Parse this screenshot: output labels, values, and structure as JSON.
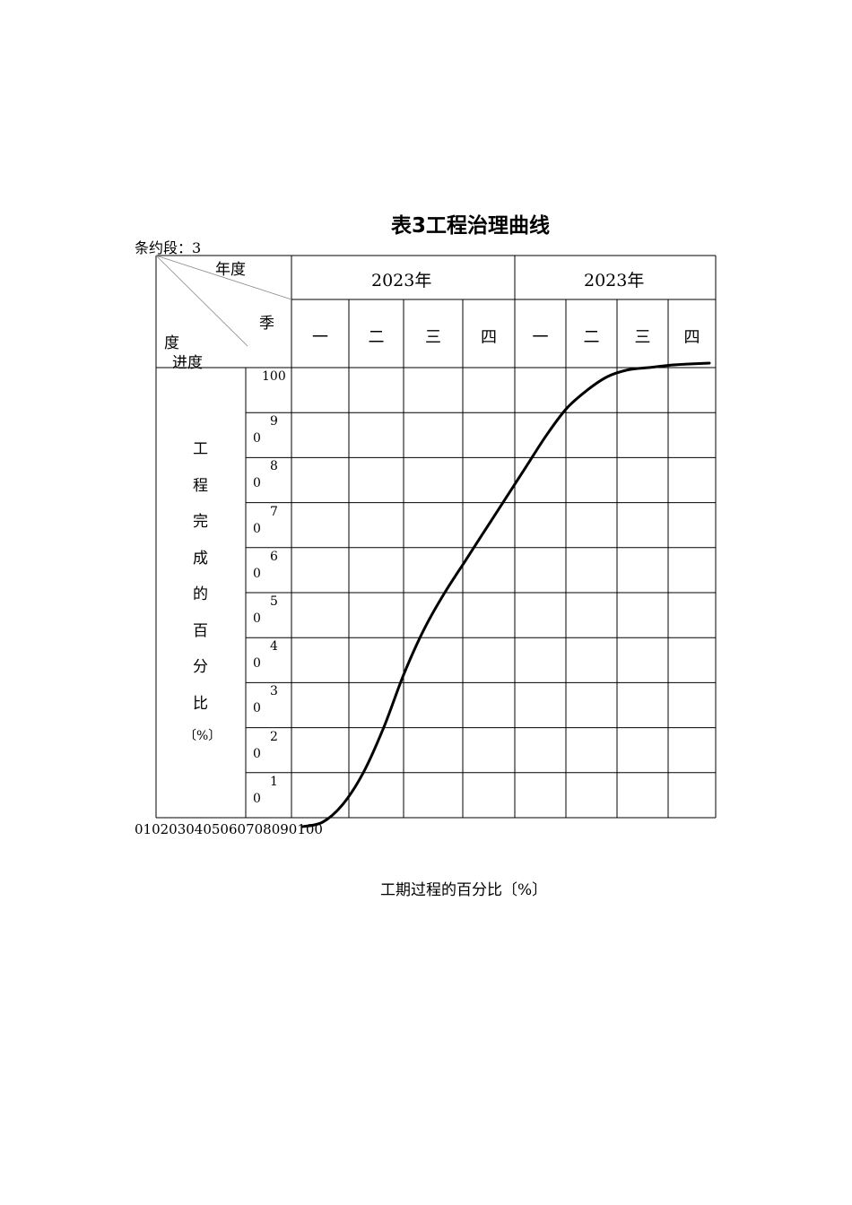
{
  "title": "表3工程治理曲线",
  "section_label": "条约段：3",
  "header": {
    "year_label": "年度",
    "quarter_label": "季",
    "degree_label": "度",
    "progress_label": "进度",
    "years": [
      "2023年",
      "2023年"
    ],
    "quarters": [
      "一",
      "二",
      "三",
      "四",
      "一",
      "二",
      "三",
      "四"
    ]
  },
  "y_axis": {
    "label_chars": [
      "工",
      "程",
      "完",
      "成",
      "的",
      "百",
      "分",
      "比",
      "〔%〕"
    ],
    "ticks": [
      {
        "top": "100",
        "bottom": ""
      },
      {
        "top": "9",
        "bottom": "0"
      },
      {
        "top": "8",
        "bottom": "0"
      },
      {
        "top": "7",
        "bottom": "0"
      },
      {
        "top": "6",
        "bottom": "0"
      },
      {
        "top": "5",
        "bottom": "0"
      },
      {
        "top": "4",
        "bottom": "0"
      },
      {
        "top": "3",
        "bottom": "0"
      },
      {
        "top": "2",
        "bottom": "0"
      },
      {
        "top": "1",
        "bottom": "0"
      }
    ]
  },
  "x_axis": {
    "ticks_text": "0102030405060708090100",
    "label": "工期过程的百分比〔%〕"
  },
  "chart_data": {
    "type": "line",
    "xlabel": "工期过程的百分比〔%〕",
    "ylabel": "工程完成的百分比〔%〕",
    "xlim": [
      0,
      100
    ],
    "ylim": [
      0,
      100
    ],
    "series": [
      {
        "x": [
          0,
          5,
          10,
          15,
          20,
          25,
          30,
          35,
          40,
          45,
          50,
          55,
          60,
          65,
          70,
          75,
          80,
          85,
          90,
          95,
          100
        ],
        "y": [
          -2,
          -1,
          3,
          10,
          20,
          32,
          42,
          50,
          57,
          64,
          71,
          78,
          85,
          91,
          95,
          98,
          99.5,
          100,
          100.5,
          100.8,
          101
        ]
      }
    ]
  }
}
